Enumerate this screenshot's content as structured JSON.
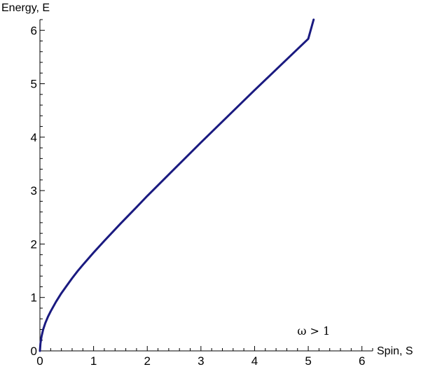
{
  "chart_data": {
    "type": "line",
    "title": "",
    "xlabel": "Spin, S",
    "ylabel": "Energy, E",
    "xlim": [
      0,
      6.2
    ],
    "ylim": [
      0,
      6.2
    ],
    "x_ticks": [
      0,
      1,
      2,
      3,
      4,
      5,
      6
    ],
    "y_ticks": [
      0,
      1,
      2,
      3,
      4,
      5,
      6
    ],
    "x_tick_labels": [
      "0",
      "1",
      "2",
      "3",
      "4",
      "5",
      "6"
    ],
    "y_tick_labels": [
      "0",
      "1",
      "2",
      "3",
      "4",
      "5",
      "6"
    ],
    "grid": false,
    "annotation": "ω > 1",
    "series": [
      {
        "color": "#1a1a80",
        "x": [
          0,
          0.01,
          0.03,
          0.06,
          0.1,
          0.15,
          0.2,
          0.3,
          0.4,
          0.5,
          0.6,
          0.7,
          0.8,
          1.0,
          1.2,
          1.5,
          1.8,
          2.0,
          2.5,
          3.0,
          3.5,
          4.0,
          4.5,
          5.0,
          5.1
        ],
        "y": [
          0,
          0.14,
          0.27,
          0.4,
          0.52,
          0.64,
          0.74,
          0.92,
          1.08,
          1.22,
          1.36,
          1.49,
          1.61,
          1.84,
          2.06,
          2.38,
          2.69,
          2.9,
          3.4,
          3.9,
          4.39,
          4.88,
          5.36,
          5.84,
          6.2
        ]
      }
    ]
  }
}
